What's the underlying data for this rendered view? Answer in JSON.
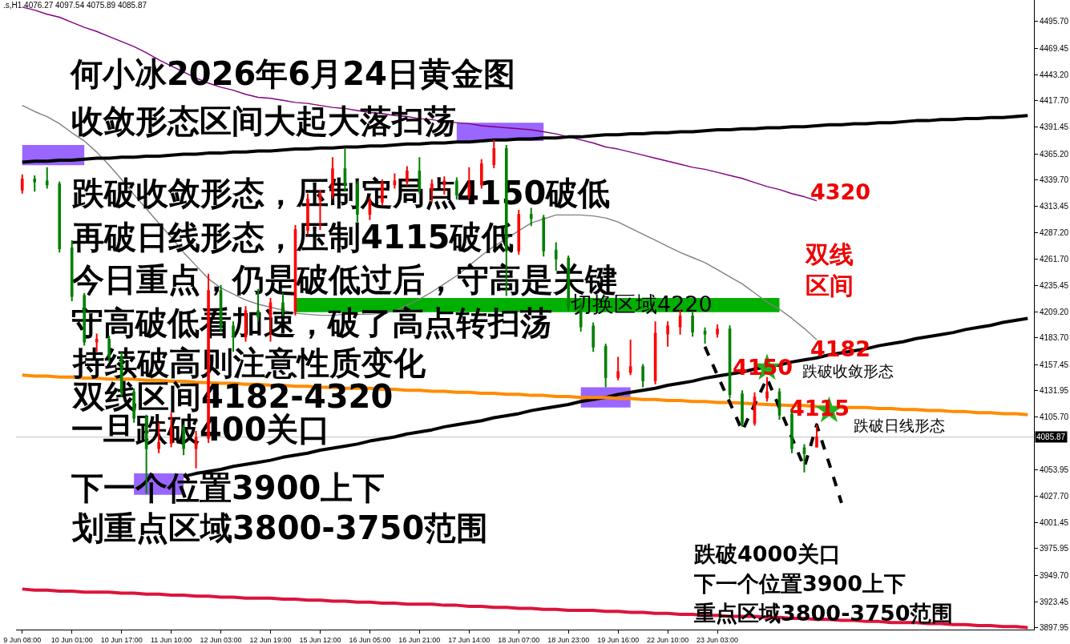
{
  "chart_data": {
    "type": "candlestick",
    "title": "何小冰2026年6月24日黄金图",
    "annotations": [
      ".s,H1 4076.27 4097.54 4075.89 4085.87",
      "收敛形态区间大起大落扫荡",
      "跌破收敛形态，压制定局点4150破低",
      "再破日线形态，压制4115破低",
      "今日重点，仍是破低过后，守高是关键",
      "守高破低看加速，破了高点转扫荡",
      "持续破高则注意性质变化",
      "双线区间4182-4320",
      "一旦跌破400关口",
      "下一个位置3900上下",
      "划重点区域3800-3750范围",
      "4320",
      "双线区间",
      "4182",
      "4150",
      "跌破收敛形态",
      "4115",
      "跌破日线形态",
      "切换区域4220",
      "跌破4000关口",
      "下一个位置3900上下",
      "重点区域3800-3750范围"
    ],
    "categories": [
      "9 Jun 08:00",
      null,
      null,
      null,
      "10 Jun 01:00",
      null,
      null,
      null,
      "10 Jun 17:00",
      null,
      null,
      null,
      "11 Jun 10:00",
      null,
      null,
      null,
      "12 Jun 03:00",
      null,
      null,
      null,
      "12 Jun 19:00",
      null,
      null,
      null,
      "15 Jun 12:00",
      null,
      null,
      null,
      "16 Jun 05:00",
      null,
      null,
      null,
      "16 Jun 21:00",
      null,
      null,
      null,
      "17 Jun 14:00",
      null,
      null,
      null,
      "18 Jun 07:00",
      null,
      null,
      null,
      "18 Jun 23:00",
      null,
      null,
      null,
      "19 Jun 16:00",
      null,
      null,
      null,
      "22 Jun 10:00",
      null,
      null,
      null,
      "23 Jun 03:00",
      null,
      null,
      null,
      null,
      null,
      null,
      null,
      null,
      null,
      null,
      null,
      null,
      null,
      null,
      null,
      null,
      null,
      null,
      null,
      null,
      null,
      null,
      null,
      null,
      null
    ],
    "ohlc": [
      [
        4330,
        4345,
        4326,
        4340
      ],
      [
        4340,
        4344,
        4328,
        4338
      ],
      [
        4338,
        4352,
        4331,
        4335
      ],
      [
        4335,
        4338,
        4268,
        4272
      ],
      [
        4272,
        4280,
        4220,
        4225
      ],
      [
        4225,
        4228,
        4176,
        4180
      ],
      [
        4180,
        4188,
        4170,
        4182
      ],
      [
        4182,
        4186,
        4160,
        4165
      ],
      [
        4165,
        4170,
        4126,
        4130
      ],
      [
        4130,
        4134,
        4100,
        4105
      ],
      [
        4105,
        4108,
        4030,
        4075
      ],
      [
        4075,
        4100,
        4070,
        4080
      ],
      [
        4080,
        4110,
        4076,
        4095
      ],
      [
        4095,
        4098,
        4068,
        4075
      ],
      [
        4075,
        4092,
        4055,
        4085
      ],
      [
        4085,
        4247,
        4080,
        4230
      ],
      [
        4230,
        4236,
        4190,
        4195
      ],
      [
        4195,
        4200,
        4170,
        4185
      ],
      [
        4185,
        4215,
        4180,
        4210
      ],
      [
        4210,
        4232,
        4200,
        4205
      ],
      [
        4205,
        4223,
        4180,
        4218
      ],
      [
        4218,
        4228,
        4205,
        4210
      ],
      [
        4210,
        4295,
        4206,
        4290
      ],
      [
        4290,
        4326,
        4286,
        4320
      ],
      [
        4320,
        4330,
        4290,
        4325
      ],
      [
        4325,
        4362,
        4321,
        4350
      ],
      [
        4350,
        4370,
        4328,
        4335
      ],
      [
        4335,
        4338,
        4298,
        4306
      ],
      [
        4306,
        4322,
        4300,
        4318
      ],
      [
        4318,
        4340,
        4314,
        4335
      ],
      [
        4335,
        4346,
        4331,
        4338
      ],
      [
        4338,
        4353,
        4334,
        4348
      ],
      [
        4348,
        4362,
        4326,
        4330
      ],
      [
        4330,
        4340,
        4318,
        4335
      ],
      [
        4335,
        4343,
        4325,
        4338
      ],
      [
        4338,
        4342,
        4320,
        4325
      ],
      [
        4325,
        4352,
        4321,
        4335
      ],
      [
        4335,
        4360,
        4331,
        4355
      ],
      [
        4355,
        4379,
        4351,
        4370
      ],
      [
        4370,
        4374,
        4225,
        4270
      ],
      [
        4270,
        4310,
        4266,
        4305
      ],
      [
        4305,
        4312,
        4294,
        4302
      ],
      [
        4302,
        4305,
        4264,
        4270
      ],
      [
        4270,
        4278,
        4250,
        4262
      ],
      [
        4262,
        4265,
        4210,
        4215
      ],
      [
        4215,
        4219,
        4190,
        4195
      ],
      [
        4195,
        4199,
        4170,
        4175
      ],
      [
        4175,
        4178,
        4135,
        4145
      ],
      [
        4145,
        4165,
        4142,
        4150
      ],
      [
        4150,
        4182,
        4147,
        4155
      ],
      [
        4155,
        4158,
        4135,
        4142
      ],
      [
        4142,
        4200,
        4138,
        4188
      ],
      [
        4188,
        4200,
        4175,
        4195
      ],
      [
        4195,
        4212,
        4187,
        4205
      ],
      [
        4205,
        4209,
        4185,
        4190
      ],
      [
        4190,
        4194,
        4178,
        4188
      ],
      [
        4188,
        4197,
        4184,
        4192
      ],
      [
        4192,
        4196,
        4124,
        4128
      ],
      [
        4128,
        4132,
        4096,
        4100
      ],
      [
        4100,
        4130,
        4097,
        4125
      ],
      [
        4125,
        4145,
        4121,
        4130
      ],
      [
        4130,
        4134,
        4103,
        4108
      ],
      [
        4108,
        4112,
        4070,
        4075
      ],
      [
        4075,
        4079,
        4051,
        4070
      ],
      [
        4076.27,
        4097.54,
        4075.89,
        4085.87
      ],
      null,
      null,
      null,
      null,
      null,
      null,
      null,
      null,
      null,
      null,
      null,
      null,
      null,
      null,
      null,
      null,
      null
    ],
    "colors": [
      "#ff0000",
      "#008000",
      "#008000",
      "#008000",
      "#008000",
      "#008000",
      "#ff0000",
      "#008000",
      "#008000",
      "#008000",
      "#008000",
      "#ff0000",
      "#ff0000",
      "#008000",
      "#ff0000",
      "#ff0000",
      "#008000",
      "#008000",
      "#ff0000",
      "#008000",
      "#ff0000",
      "#008000",
      "#ff0000",
      "#ff0000",
      "#ff0000",
      "#ff0000",
      "#008000",
      "#008000",
      "#ff0000",
      "#ff0000",
      "#ff0000",
      "#ff0000",
      "#008000",
      "#ff0000",
      "#ff0000",
      "#008000",
      "#ff0000",
      "#ff0000",
      "#ff0000",
      "#008000",
      "#ff0000",
      "#008000",
      "#008000",
      "#008000",
      "#008000",
      "#008000",
      "#008000",
      "#008000",
      "#ff0000",
      "#ff0000",
      "#008000",
      "#ff0000",
      "#ff0000",
      "#ff0000",
      "#008000",
      "#008000",
      "#ff0000",
      "#008000",
      "#008000",
      "#ff0000",
      "#ff0000",
      "#008000",
      "#008000",
      "#008000",
      "#ff0000",
      null,
      null,
      null,
      null,
      null,
      null,
      null,
      null,
      null,
      null,
      null,
      null,
      null,
      null,
      null,
      null,
      null
    ],
    "series": [
      {
        "type": "line",
        "color": "#9966ff",
        "values": [
          null,
          null,
          null,
          null,
          null,
          null,
          null,
          null,
          null,
          null,
          null,
          null,
          null,
          null,
          null,
          null,
          null,
          null,
          null,
          null,
          null,
          null,
          null,
          null,
          null,
          null,
          null,
          null,
          null,
          null,
          null,
          null,
          null,
          null,
          null,
          null,
          null,
          null,
          null,
          null,
          null,
          null,
          null,
          null,
          null,
          null,
          null,
          null,
          null,
          null,
          null,
          null,
          null,
          null,
          null,
          null,
          null,
          null,
          null,
          null,
          null,
          null,
          null,
          null,
          null,
          null,
          null,
          null,
          null,
          null,
          null,
          null,
          null,
          null,
          null,
          null,
          null,
          null,
          null,
          null,
          null,
          null
        ],
        "lower": [
          4354,
          4354,
          4354,
          4354,
          4354,
          4354,
          null,
          null,
          null,
          4029,
          4029,
          4029,
          4029,
          4029,
          null,
          null,
          null,
          null,
          null,
          null,
          null,
          null,
          null,
          null,
          null,
          null,
          null,
          null,
          null,
          null,
          null,
          null,
          null,
          null,
          null,
          4378,
          4378,
          4378,
          4378,
          4378,
          4378,
          4378,
          4378,
          null,
          null,
          4115,
          4115,
          4115,
          4115,
          4115,
          null,
          null,
          null,
          null,
          null,
          null,
          null,
          null,
          null,
          null,
          null,
          null,
          null,
          null,
          null,
          null,
          null,
          null,
          null,
          null,
          null,
          null,
          null,
          null,
          null,
          null,
          null,
          null,
          null,
          null,
          null,
          null
        ],
        "upper": [
          4374,
          4374,
          4374,
          4374,
          4374,
          4374,
          null,
          null,
          null,
          4050,
          4050,
          4050,
          4050,
          4050,
          null,
          null,
          null,
          null,
          null,
          null,
          null,
          null,
          null,
          null,
          null,
          null,
          null,
          null,
          null,
          null,
          null,
          null,
          null,
          null,
          null,
          4396,
          4396,
          4396,
          4396,
          4396,
          4396,
          4396,
          4396,
          null,
          null,
          4135,
          4135,
          4135,
          4135,
          4135,
          null,
          null,
          null,
          null,
          null,
          null,
          null,
          null,
          null,
          null,
          null,
          null,
          null,
          null,
          null,
          null,
          null,
          null,
          null,
          null,
          null,
          null,
          null,
          null,
          null,
          null,
          null,
          null,
          null,
          null,
          null,
          null
        ]
      },
      {
        "type": "line",
        "color": "#00b000",
        "values": [
          null,
          null,
          null,
          null,
          null,
          null,
          null,
          null,
          null,
          null,
          null,
          null,
          null,
          null,
          null,
          null,
          null,
          null,
          null,
          null,
          null,
          null,
          null,
          null,
          null,
          null,
          null,
          null,
          null,
          null,
          null,
          null,
          null,
          null,
          null,
          null,
          null,
          null,
          null,
          null,
          null,
          null,
          null,
          null,
          null,
          null,
          null,
          null,
          null,
          null,
          null,
          null,
          null,
          null,
          null,
          null,
          null,
          null,
          null,
          null,
          null,
          null,
          null,
          null,
          null,
          null,
          null,
          null,
          null,
          null,
          null,
          null,
          null,
          null,
          null,
          null,
          null,
          null,
          null,
          null,
          null,
          null
        ],
        "lower": [
          null,
          null,
          null,
          null,
          null,
          null,
          null,
          null,
          null,
          null,
          null,
          null,
          null,
          null,
          null,
          null,
          null,
          null,
          null,
          null,
          null,
          null,
          4209,
          4209,
          4209,
          4209,
          4209,
          4209,
          4209,
          4209,
          4209,
          4209,
          4209,
          4209,
          4209,
          4209,
          4209,
          4209,
          4209,
          4209,
          4209,
          4209,
          4209,
          4209,
          4209,
          4209,
          4209,
          4209,
          4209,
          4209,
          4209,
          4209,
          4209,
          4209,
          4209,
          4209,
          4209,
          4209,
          4209,
          4209,
          4209,
          4209,
          null,
          null,
          null,
          null,
          null,
          null,
          null,
          null,
          null,
          null,
          null,
          null,
          null,
          null,
          null,
          null,
          null,
          null,
          null,
          null
        ],
        "upper": [
          null,
          null,
          null,
          null,
          null,
          null,
          null,
          null,
          null,
          null,
          null,
          null,
          null,
          null,
          null,
          null,
          null,
          null,
          null,
          null,
          null,
          null,
          4223,
          4223,
          4223,
          4223,
          4223,
          4223,
          4223,
          4223,
          4223,
          4223,
          4223,
          4223,
          4223,
          4223,
          4223,
          4223,
          4223,
          4223,
          4223,
          4223,
          4223,
          4223,
          4223,
          4223,
          4223,
          4223,
          4223,
          4223,
          4223,
          4223,
          4223,
          4223,
          4223,
          4223,
          4223,
          4223,
          4223,
          4223,
          4223,
          4223,
          null,
          null,
          null,
          null,
          null,
          null,
          null,
          null,
          null,
          null,
          null,
          null,
          null,
          null,
          null,
          null,
          null,
          null,
          null,
          null
        ]
      },
      {
        "type": "line",
        "color": "#800080",
        "values": [
          4510,
          4507,
          4503,
          4500,
          4495,
          4490,
          4486,
          4481,
          4476,
          4471,
          4465,
          4458,
          4452,
          4446,
          4440,
          4435,
          4431,
          4428,
          4424,
          4421,
          4420,
          4418,
          4416,
          4415,
          4413,
          4411,
          4410,
          4408,
          4406,
          4405,
          4403,
          4402,
          4400,
          4399,
          4397,
          4396,
          4395,
          4393,
          4392,
          4391,
          4390,
          4389,
          4387,
          4385,
          4382,
          4379,
          4376,
          4372,
          4370,
          4367,
          4364,
          4361,
          4358,
          4355,
          4352,
          4350,
          4347,
          4344,
          4341,
          4337,
          4333,
          4330,
          4326,
          4323,
          4319,
          null,
          null,
          null,
          null,
          null,
          null,
          null,
          null,
          null,
          null,
          null,
          null,
          null,
          null,
          null,
          null,
          null
        ]
      },
      {
        "type": "line",
        "color": "#808080",
        "values": [
          4413,
          4407,
          4402,
          4395,
          4386,
          4378,
          4367,
          4354,
          4340,
          4325,
          4311,
          4297,
          4283,
          4268,
          4255,
          4242,
          4233,
          4227,
          4221,
          4217,
          null,
          null,
          4208,
          4207,
          4206,
          4206,
          4207,
          4207,
          4207,
          4208,
          4210,
          4216,
          4222,
          4229,
          4237,
          4245,
          4255,
          4265,
          4274,
          null,
          null,
          4297,
          null,
          4305,
          4305,
          4305,
          4304,
          4302,
          4298,
          4292,
          4286,
          4280,
          4274,
          4268,
          4263,
          4258,
          4251,
          4244,
          4237,
          4228,
          4219,
          4212,
          4203,
          4193,
          4182,
          null,
          null,
          null,
          null,
          null,
          null,
          null,
          null,
          null,
          null,
          null,
          null,
          null,
          null,
          null,
          null,
          null
        ]
      },
      {
        "type": "line",
        "color": "#000000",
        "values": [
          4357,
          4358,
          4358,
          4359,
          4359,
          4360,
          4361,
          4361,
          4362,
          4362,
          4363,
          4363,
          4364,
          4365,
          4365,
          4366,
          4366,
          4367,
          4367,
          4368,
          4368,
          4369,
          4370,
          4370,
          4371,
          4371,
          4372,
          4372,
          4373,
          4373,
          4374,
          4375,
          4375,
          4376,
          4376,
          4377,
          4377,
          4378,
          4379,
          4379,
          4380,
          4380,
          4381,
          4381,
          4382,
          4382,
          4383,
          4384,
          4384,
          4385,
          4385,
          4386,
          4386,
          4387,
          4387,
          4388,
          4389,
          4389,
          4390,
          4390,
          4391,
          4391,
          4392,
          4392,
          4393,
          4394,
          4394,
          4395,
          4395,
          4396,
          4396,
          4397,
          4398,
          4398,
          4399,
          4399,
          4400,
          4400,
          4401,
          4401,
          4402,
          4403
        ]
      },
      {
        "type": "line",
        "color": "#000000",
        "values": [
          null,
          null,
          null,
          null,
          null,
          null,
          null,
          null,
          null,
          null,
          null,
          null,
          null,
          4047,
          4050,
          4052,
          4054,
          4057,
          4059,
          4061,
          4063,
          4066,
          4068,
          4070,
          4073,
          4075,
          4077,
          4079,
          4082,
          4084,
          4086,
          4089,
          4091,
          4093,
          4096,
          4098,
          4100,
          4102,
          4105,
          4107,
          4109,
          4112,
          4114,
          4116,
          4118,
          4121,
          4123,
          4125,
          4128,
          4130,
          4132,
          4134,
          4137,
          4139,
          4141,
          4144,
          4146,
          null,
          4150,
          4153,
          null,
          4157,
          4160,
          4162,
          4164,
          4167,
          4169,
          4171,
          4173,
          4176,
          4178,
          4180,
          4183,
          4185,
          4187,
          4189,
          4192,
          4194,
          4196,
          4199,
          4201,
          4203
        ]
      },
      {
        "type": "line",
        "color": "#ff8c00",
        "values": [
          4147,
          4146,
          4146,
          4145,
          4145,
          4144,
          4144,
          4143,
          null,
          4143,
          4142,
          4142,
          4141,
          4141,
          4140,
          null,
          4139,
          4139,
          4138,
          4138,
          4137,
          4137,
          4136,
          4136,
          4135,
          4135,
          4134,
          4134,
          4134,
          4133,
          4133,
          4132,
          4132,
          4131,
          4131,
          4130,
          4130,
          4129,
          4129,
          4128,
          4128,
          4127,
          4127,
          4126,
          4126,
          4125,
          4125,
          4125,
          4124,
          4124,
          4123,
          4123,
          4122,
          4122,
          4121,
          4121,
          4120,
          4120,
          null,
          null,
          4118,
          null,
          4117,
          4117,
          4116,
          null,
          4115,
          4115,
          4115,
          4114,
          4114,
          4113,
          4113,
          4112,
          4112,
          4111,
          4111,
          4110,
          4110,
          4109,
          4109,
          4108
        ]
      },
      {
        "type": "line",
        "color": "#dc143c",
        "values": [
          3936,
          3935,
          3935,
          3934,
          3934,
          3933,
          3933,
          3933,
          3932,
          3932,
          3931,
          3931,
          3930,
          3930,
          3929,
          3929,
          3928,
          3928,
          3927,
          3927,
          3927,
          3926,
          3926,
          3925,
          3925,
          3924,
          3924,
          3923,
          3923,
          3922,
          3922,
          3921,
          3921,
          3921,
          3920,
          3920,
          3919,
          3919,
          3918,
          3918,
          3917,
          3917,
          3916,
          3916,
          3915,
          3915,
          3915,
          3914,
          3914,
          3913,
          3913,
          3912,
          3912,
          3911,
          3911,
          3910,
          3910,
          3909,
          3909,
          3909,
          3908,
          3908,
          3907,
          3907,
          3906,
          3906,
          3905,
          3905,
          3904,
          3904,
          3903,
          3903,
          3903,
          3902,
          3902,
          3901,
          3901,
          3900,
          3900,
          3899,
          3899,
          3898
        ]
      },
      {
        "type": "scatter",
        "color": "#20b020",
        "marker": "star",
        "values": [
          null,
          null,
          null,
          null,
          null,
          null,
          null,
          null,
          null,
          null,
          null,
          null,
          null,
          null,
          null,
          null,
          null,
          null,
          null,
          null,
          null,
          null,
          null,
          null,
          null,
          null,
          null,
          null,
          null,
          null,
          null,
          null,
          null,
          null,
          null,
          null,
          null,
          null,
          null,
          null,
          null,
          null,
          null,
          null,
          null,
          null,
          null,
          null,
          null,
          null,
          null,
          null,
          null,
          null,
          null,
          null,
          null,
          null,
          null,
          null,
          4154,
          null,
          null,
          null,
          null,
          4112,
          null,
          null,
          null,
          null,
          null,
          null,
          null,
          null,
          null,
          null,
          null,
          null,
          null,
          null,
          null,
          null
        ]
      },
      {
        "type": "line",
        "color": "#000000",
        "line_style": "dashed",
        "values": [
          null,
          null,
          null,
          null,
          null,
          null,
          null,
          null,
          null,
          null,
          null,
          null,
          null,
          null,
          null,
          null,
          null,
          null,
          null,
          null,
          null,
          null,
          null,
          null,
          null,
          null,
          null,
          null,
          null,
          null,
          null,
          null,
          null,
          null,
          null,
          null,
          null,
          null,
          null,
          null,
          null,
          null,
          null,
          null,
          null,
          null,
          null,
          null,
          null,
          null,
          null,
          null,
          null,
          null,
          null,
          4175,
          4147,
          4120,
          4092,
          null,
          4144,
          null,
          null,
          4056,
          4098,
          4060,
          4021,
          null,
          null,
          null,
          null,
          null,
          null,
          null,
          null,
          null,
          null,
          null,
          null,
          null,
          null,
          null
        ]
      }
    ],
    "ref_lines": [
      {
        "axis": "y",
        "value": 4085.87,
        "label": "4085.87",
        "color": "#c0c0c0"
      }
    ],
    "ylim": [
      3896,
      4517
    ],
    "yticks": [
      {
        "value": 4495.7,
        "label": "4495.70"
      },
      4469.45,
      {
        "value": 4443.2,
        "label": "4443.20"
      },
      {
        "value": 4417.7,
        "label": "4417.70"
      },
      4391.45,
      {
        "value": 4365.2,
        "label": "4365.20"
      },
      {
        "value": 4339.7,
        "label": "4339.70"
      },
      4313.45,
      {
        "value": 4287.2,
        "label": "4287.20"
      },
      {
        "value": 4261.7,
        "label": "4261.70"
      },
      4235.45,
      {
        "value": 4209.2,
        "label": "4209.20"
      },
      {
        "value": 4183.7,
        "label": "4183.70"
      },
      4157.45,
      4131.95,
      {
        "value": 4105.7,
        "label": "4105.70"
      },
      4053.95,
      {
        "value": 4027.7,
        "label": "4027.70"
      },
      4001.45,
      3975.95,
      {
        "value": 3949.7,
        "label": "3949.70"
      },
      3923.45,
      3897.95
    ]
  }
}
